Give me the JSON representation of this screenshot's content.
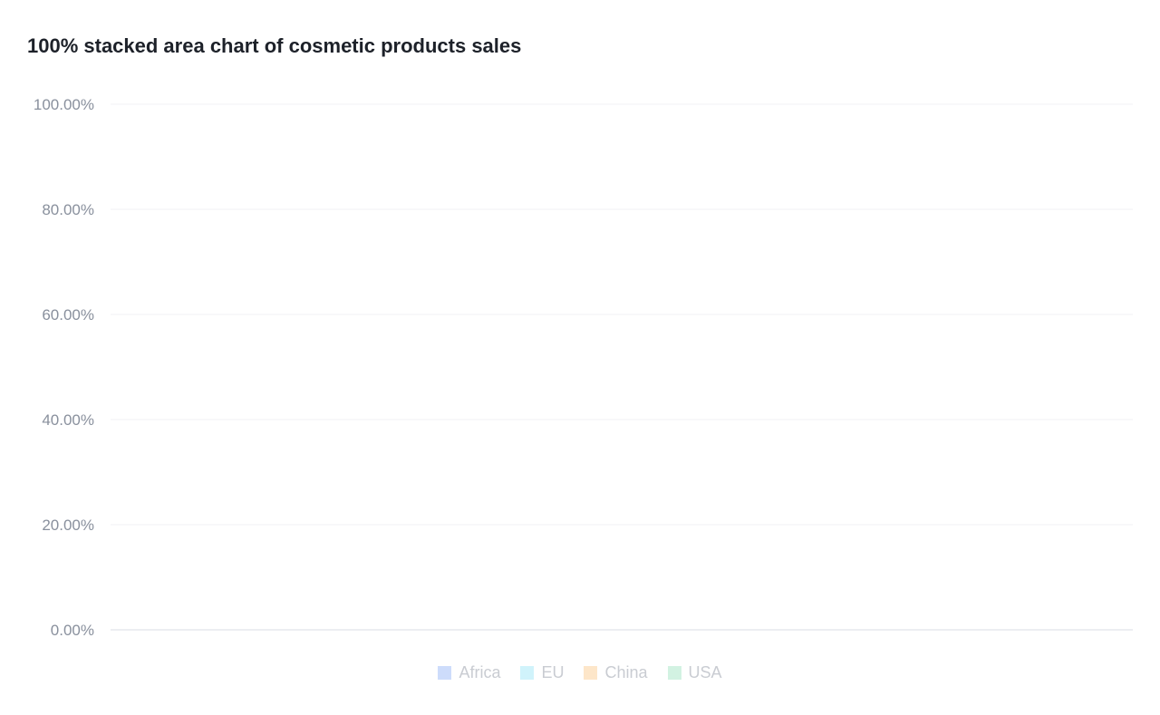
{
  "chart_data": {
    "type": "area",
    "stacking": "percent",
    "title": "100% stacked area chart of cosmetic products sales",
    "xlabel": "",
    "ylabel": "",
    "ylim": [
      0,
      100
    ],
    "y_ticks": [
      "0.00%",
      "20.00%",
      "40.00%",
      "60.00%",
      "80.00%",
      "100.00%"
    ],
    "grid": true,
    "legend_placement": "bottom",
    "series": [
      {
        "name": "Africa",
        "color": "#1664FF",
        "legend_color": "#cddcfb",
        "visible": false,
        "values": []
      },
      {
        "name": "EU",
        "color": "#1AC6FF",
        "legend_color": "#d0f3fb",
        "visible": false,
        "values": []
      },
      {
        "name": "China",
        "color": "#FF8A00",
        "legend_color": "#fde6c9",
        "visible": false,
        "values": []
      },
      {
        "name": "USA",
        "color": "#3CC780",
        "legend_color": "#d2f2e2",
        "visible": false,
        "values": []
      }
    ]
  }
}
